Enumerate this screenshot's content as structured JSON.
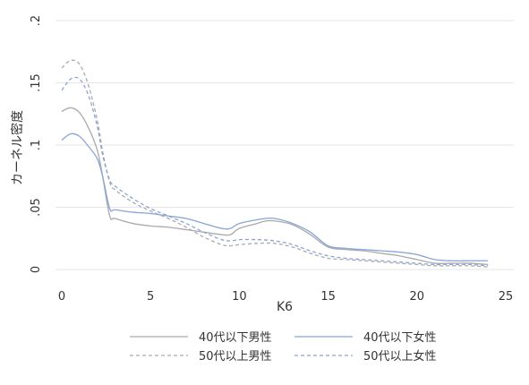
{
  "chart_data": {
    "type": "line",
    "title": "",
    "xlabel": "K6",
    "ylabel": "カーネル密度",
    "xlim": [
      0,
      25
    ],
    "ylim": [
      0,
      0.2
    ],
    "x_ticks": [
      0,
      5,
      10,
      15,
      20,
      25
    ],
    "x_tick_labels": [
      "0",
      "5",
      "10",
      "15",
      "20",
      "25"
    ],
    "y_ticks": [
      0,
      0.05,
      0.1,
      0.15,
      0.2
    ],
    "y_tick_labels": [
      "0",
      ".05",
      ".1",
      ".15",
      ".2"
    ],
    "grid": "horizontal",
    "legend_position": "bottom",
    "series": [
      {
        "name": "40代以下男性",
        "color": "#aaaaaa",
        "dash": "solid",
        "points": [
          [
            0,
            0.127
          ],
          [
            0.5,
            0.13
          ],
          [
            1,
            0.126
          ],
          [
            1.5,
            0.114
          ],
          [
            2,
            0.096
          ],
          [
            2.3,
            0.075
          ],
          [
            2.7,
            0.043
          ],
          [
            3,
            0.041
          ],
          [
            4,
            0.037
          ],
          [
            5,
            0.035
          ],
          [
            6,
            0.034
          ],
          [
            7,
            0.032
          ],
          [
            8,
            0.03
          ],
          [
            9,
            0.028
          ],
          [
            9.5,
            0.028
          ],
          [
            10,
            0.033
          ],
          [
            11,
            0.037
          ],
          [
            11.5,
            0.039
          ],
          [
            12,
            0.039
          ],
          [
            13,
            0.036
          ],
          [
            14,
            0.028
          ],
          [
            15,
            0.018
          ],
          [
            16,
            0.016
          ],
          [
            17,
            0.015
          ],
          [
            18,
            0.013
          ],
          [
            19,
            0.011
          ],
          [
            20,
            0.008
          ],
          [
            21,
            0.005
          ],
          [
            22,
            0.005
          ],
          [
            23,
            0.005
          ],
          [
            24,
            0.004
          ]
        ]
      },
      {
        "name": "40代以下女性",
        "color": "#88a4d8",
        "dash": "solid",
        "points": [
          [
            0,
            0.104
          ],
          [
            0.5,
            0.109
          ],
          [
            1,
            0.107
          ],
          [
            1.5,
            0.099
          ],
          [
            2,
            0.089
          ],
          [
            2.3,
            0.075
          ],
          [
            2.7,
            0.049
          ],
          [
            3,
            0.048
          ],
          [
            4,
            0.046
          ],
          [
            5,
            0.045
          ],
          [
            6,
            0.043
          ],
          [
            7,
            0.041
          ],
          [
            8,
            0.037
          ],
          [
            9,
            0.033
          ],
          [
            9.5,
            0.033
          ],
          [
            10,
            0.037
          ],
          [
            11,
            0.04
          ],
          [
            11.5,
            0.041
          ],
          [
            12,
            0.041
          ],
          [
            13,
            0.037
          ],
          [
            14,
            0.03
          ],
          [
            15,
            0.019
          ],
          [
            16,
            0.017
          ],
          [
            17,
            0.016
          ],
          [
            18,
            0.015
          ],
          [
            19,
            0.014
          ],
          [
            20,
            0.012
          ],
          [
            21,
            0.008
          ],
          [
            22,
            0.007
          ],
          [
            23,
            0.007
          ],
          [
            24,
            0.007
          ]
        ]
      },
      {
        "name": "50代以上男性",
        "color": "#aaaaaa",
        "dash": "dashed",
        "points": [
          [
            0,
            0.162
          ],
          [
            0.5,
            0.168
          ],
          [
            1,
            0.165
          ],
          [
            1.5,
            0.148
          ],
          [
            2,
            0.12
          ],
          [
            2.3,
            0.095
          ],
          [
            2.7,
            0.07
          ],
          [
            3,
            0.064
          ],
          [
            4,
            0.054
          ],
          [
            5,
            0.047
          ],
          [
            6,
            0.041
          ],
          [
            7,
            0.034
          ],
          [
            8,
            0.026
          ],
          [
            9,
            0.02
          ],
          [
            9.5,
            0.019
          ],
          [
            10,
            0.02
          ],
          [
            11,
            0.021
          ],
          [
            12,
            0.021
          ],
          [
            13,
            0.018
          ],
          [
            14,
            0.013
          ],
          [
            15,
            0.009
          ],
          [
            16,
            0.008
          ],
          [
            17,
            0.007
          ],
          [
            18,
            0.006
          ],
          [
            19,
            0.005
          ],
          [
            20,
            0.004
          ],
          [
            21,
            0.003
          ],
          [
            22,
            0.003
          ],
          [
            23,
            0.003
          ],
          [
            24,
            0.002
          ]
        ]
      },
      {
        "name": "50代以上女性",
        "color": "#88a4d8",
        "dash": "dashed",
        "points": [
          [
            0,
            0.144
          ],
          [
            0.5,
            0.153
          ],
          [
            1,
            0.153
          ],
          [
            1.5,
            0.14
          ],
          [
            2,
            0.115
          ],
          [
            2.3,
            0.092
          ],
          [
            2.7,
            0.072
          ],
          [
            3,
            0.067
          ],
          [
            4,
            0.057
          ],
          [
            5,
            0.049
          ],
          [
            6,
            0.043
          ],
          [
            7,
            0.037
          ],
          [
            8,
            0.03
          ],
          [
            9,
            0.024
          ],
          [
            9.5,
            0.023
          ],
          [
            10,
            0.024
          ],
          [
            11,
            0.024
          ],
          [
            12,
            0.023
          ],
          [
            13,
            0.02
          ],
          [
            14,
            0.015
          ],
          [
            15,
            0.011
          ],
          [
            16,
            0.009
          ],
          [
            17,
            0.008
          ],
          [
            18,
            0.007
          ],
          [
            19,
            0.006
          ],
          [
            20,
            0.005
          ],
          [
            21,
            0.004
          ],
          [
            22,
            0.004
          ],
          [
            23,
            0.004
          ],
          [
            24,
            0.003
          ]
        ]
      }
    ]
  }
}
